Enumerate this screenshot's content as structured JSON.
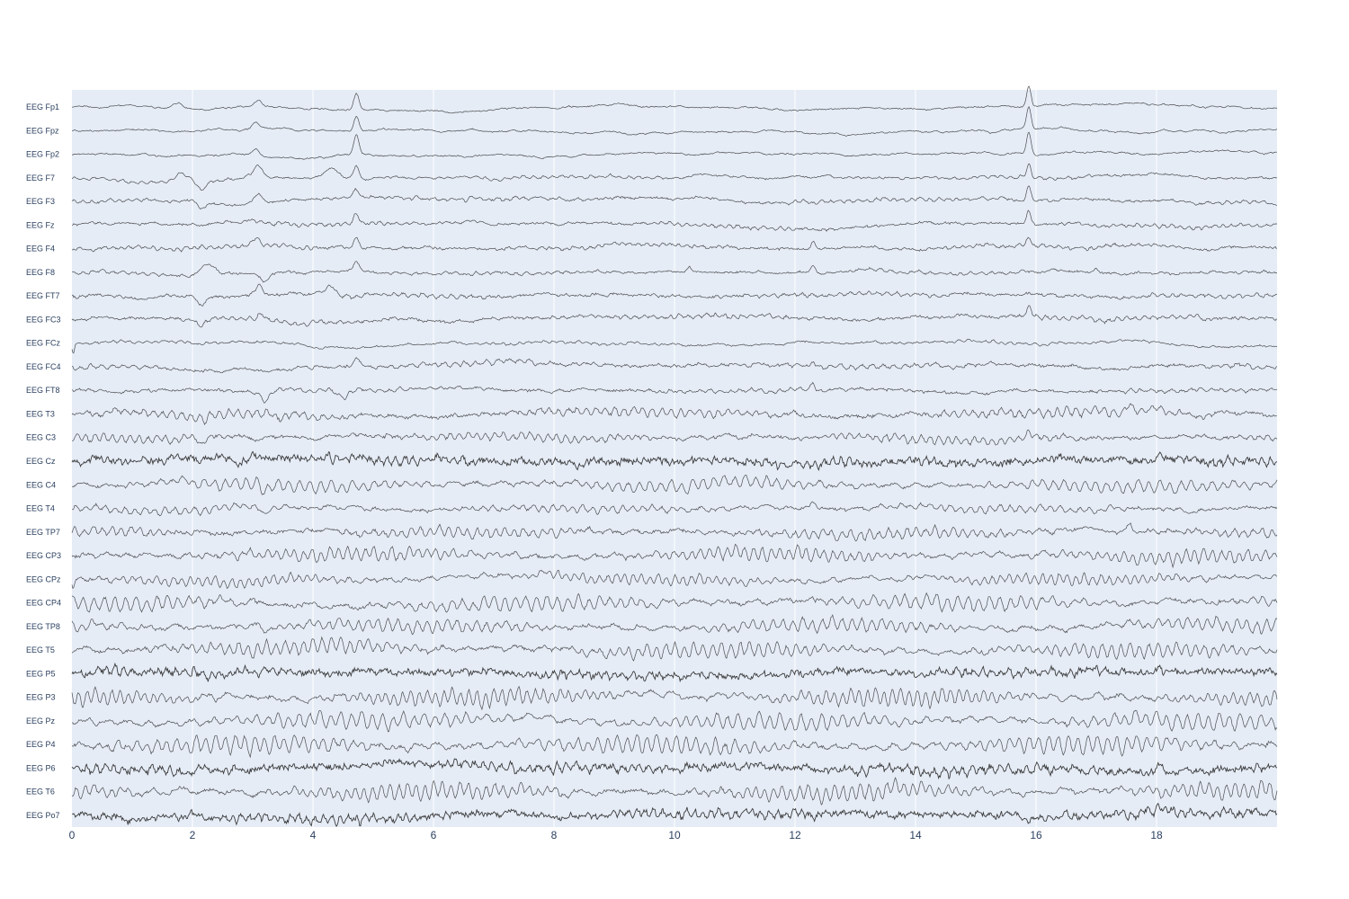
{
  "chart_data": {
    "type": "line",
    "title": "",
    "xlabel": "",
    "ylabel": "",
    "xlim": [
      0,
      20
    ],
    "x_ticks": [
      0,
      2,
      4,
      6,
      8,
      10,
      12,
      14,
      16,
      18
    ],
    "grid": true,
    "legend": "none",
    "colors": {
      "plot_bg": "#e5ecf6",
      "grid": "#ffffff",
      "trace": "#333333",
      "text": "#2a3f5f"
    },
    "series": [
      {
        "name": "EEG Fp1",
        "noise": 0.06,
        "alpha": 0,
        "events": [
          {
            "t": 1.75,
            "a": 0.35,
            "w": 0.12
          },
          {
            "t": 3.1,
            "a": 0.45,
            "w": 0.08
          },
          {
            "t": 4.72,
            "a": 1.0,
            "w": 0.06
          },
          {
            "t": 15.88,
            "a": 1.25,
            "w": 0.05
          }
        ]
      },
      {
        "name": "EEG Fpz",
        "noise": 0.06,
        "alpha": 0,
        "events": [
          {
            "t": 3.05,
            "a": 0.45,
            "w": 0.08
          },
          {
            "t": 4.72,
            "a": 1.0,
            "w": 0.06
          },
          {
            "t": 15.88,
            "a": 1.35,
            "w": 0.05
          }
        ]
      },
      {
        "name": "EEG Fp2",
        "noise": 0.06,
        "alpha": 0,
        "events": [
          {
            "t": 3.05,
            "a": 0.45,
            "w": 0.08
          },
          {
            "t": 4.72,
            "a": 1.2,
            "w": 0.06
          },
          {
            "t": 15.88,
            "a": 1.35,
            "w": 0.05
          }
        ]
      },
      {
        "name": "EEG F7",
        "noise": 0.1,
        "alpha": 0.05,
        "events": [
          {
            "t": 1.8,
            "a": 0.5,
            "w": 0.15
          },
          {
            "t": 2.15,
            "a": -0.55,
            "w": 0.08
          },
          {
            "t": 3.1,
            "a": 0.75,
            "w": 0.1
          },
          {
            "t": 4.3,
            "a": 0.6,
            "w": 0.15
          },
          {
            "t": 4.72,
            "a": 0.8,
            "w": 0.06
          },
          {
            "t": 15.88,
            "a": 0.9,
            "w": 0.05
          }
        ]
      },
      {
        "name": "EEG F3",
        "noise": 0.14,
        "alpha": 0.06,
        "events": [
          {
            "t": 2.15,
            "a": -0.45,
            "w": 0.08
          },
          {
            "t": 3.1,
            "a": 0.55,
            "w": 0.08
          },
          {
            "t": 4.72,
            "a": 0.55,
            "w": 0.06
          },
          {
            "t": 15.88,
            "a": 0.9,
            "w": 0.05
          }
        ]
      },
      {
        "name": "EEG Fz",
        "noise": 0.14,
        "alpha": 0.06,
        "events": [
          {
            "t": 4.72,
            "a": 0.6,
            "w": 0.06
          },
          {
            "t": 15.88,
            "a": 0.8,
            "w": 0.05
          }
        ]
      },
      {
        "name": "EEG F4",
        "noise": 0.16,
        "alpha": 0.06,
        "events": [
          {
            "t": 3.05,
            "a": 0.5,
            "w": 0.08
          },
          {
            "t": 4.72,
            "a": 0.7,
            "w": 0.06
          },
          {
            "t": 12.3,
            "a": 0.4,
            "w": 0.05
          },
          {
            "t": 15.88,
            "a": 0.5,
            "w": 0.05
          }
        ]
      },
      {
        "name": "EEG F8",
        "noise": 0.14,
        "alpha": 0.05,
        "events": [
          {
            "t": 2.25,
            "a": 0.6,
            "w": 0.15
          },
          {
            "t": 3.2,
            "a": -0.5,
            "w": 0.08
          },
          {
            "t": 4.72,
            "a": 0.7,
            "w": 0.08
          },
          {
            "t": 10.25,
            "a": 0.45,
            "w": 0.06
          },
          {
            "t": 12.3,
            "a": 0.45,
            "w": 0.05
          },
          {
            "t": 17.0,
            "a": 0.3,
            "w": 0.06
          }
        ]
      },
      {
        "name": "EEG FT7",
        "noise": 0.18,
        "alpha": 0.07,
        "events": [
          {
            "t": 2.15,
            "a": -0.5,
            "w": 0.1
          },
          {
            "t": 3.1,
            "a": 0.7,
            "w": 0.08
          },
          {
            "t": 4.3,
            "a": 0.6,
            "w": 0.1
          }
        ]
      },
      {
        "name": "EEG FC3",
        "noise": 0.18,
        "alpha": 0.07,
        "events": [
          {
            "t": 2.15,
            "a": -0.5,
            "w": 0.1
          },
          {
            "t": 3.15,
            "a": 0.5,
            "w": 0.08
          },
          {
            "t": 15.88,
            "a": 0.6,
            "w": 0.05
          }
        ]
      },
      {
        "name": "EEG FCz",
        "noise": 0.09,
        "alpha": 0.04,
        "events": [
          {
            "t": 0.02,
            "a": -0.6,
            "w": 0.03
          }
        ]
      },
      {
        "name": "EEG FC4",
        "noise": 0.18,
        "alpha": 0.08,
        "events": [
          {
            "t": 4.72,
            "a": 0.5,
            "w": 0.08
          },
          {
            "t": 12.3,
            "a": 0.4,
            "w": 0.05
          }
        ]
      },
      {
        "name": "EEG FT8",
        "noise": 0.16,
        "alpha": 0.06,
        "events": [
          {
            "t": 3.2,
            "a": -0.6,
            "w": 0.08
          },
          {
            "t": 4.5,
            "a": -0.5,
            "w": 0.1
          },
          {
            "t": 12.3,
            "a": 0.4,
            "w": 0.05
          }
        ]
      },
      {
        "name": "EEG T3",
        "noise": 0.26,
        "alpha": 0.18,
        "events": [
          {
            "t": 2.2,
            "a": -0.4,
            "w": 0.08
          },
          {
            "t": 17.55,
            "a": 0.4,
            "w": 0.05
          }
        ]
      },
      {
        "name": "EEG C3",
        "noise": 0.22,
        "alpha": 0.16,
        "events": [
          {
            "t": 2.15,
            "a": -0.45,
            "w": 0.08
          },
          {
            "t": 15.88,
            "a": 0.4,
            "w": 0.05
          }
        ]
      },
      {
        "name": "EEG Cz",
        "noise": 0.55,
        "alpha": 0.1,
        "events": [
          {
            "t": 18.05,
            "a": 0.4,
            "w": 0.05
          }
        ]
      },
      {
        "name": "EEG C4",
        "noise": 0.22,
        "alpha": 0.25,
        "events": [
          {
            "t": 3.2,
            "a": -0.4,
            "w": 0.08
          }
        ]
      },
      {
        "name": "EEG T4",
        "noise": 0.2,
        "alpha": 0.14,
        "events": [
          {
            "t": 3.2,
            "a": -0.5,
            "w": 0.08
          },
          {
            "t": 12.3,
            "a": 0.4,
            "w": 0.05
          }
        ]
      },
      {
        "name": "EEG TP7",
        "noise": 0.26,
        "alpha": 0.2,
        "events": [
          {
            "t": 17.55,
            "a": 0.4,
            "w": 0.05
          }
        ]
      },
      {
        "name": "EEG CP3",
        "noise": 0.24,
        "alpha": 0.26,
        "events": []
      },
      {
        "name": "EEG CPz",
        "noise": 0.2,
        "alpha": 0.2,
        "events": [
          {
            "t": 0.02,
            "a": -0.6,
            "w": 0.03
          }
        ]
      },
      {
        "name": "EEG CP4",
        "noise": 0.26,
        "alpha": 0.3,
        "events": []
      },
      {
        "name": "EEG TP8",
        "noise": 0.24,
        "alpha": 0.26,
        "events": [
          {
            "t": 3.2,
            "a": -0.5,
            "w": 0.08
          }
        ]
      },
      {
        "name": "EEG T5",
        "noise": 0.26,
        "alpha": 0.3,
        "events": []
      },
      {
        "name": "EEG P5",
        "noise": 0.5,
        "alpha": 0.12,
        "events": [
          {
            "t": 18.05,
            "a": 0.4,
            "w": 0.05
          }
        ]
      },
      {
        "name": "EEG P3",
        "noise": 0.26,
        "alpha": 0.34,
        "events": []
      },
      {
        "name": "EEG Pz",
        "noise": 0.24,
        "alpha": 0.34,
        "events": []
      },
      {
        "name": "EEG P4",
        "noise": 0.26,
        "alpha": 0.36,
        "events": []
      },
      {
        "name": "EEG P6",
        "noise": 0.52,
        "alpha": 0.14,
        "events": [
          {
            "t": 18.05,
            "a": 0.4,
            "w": 0.05
          }
        ]
      },
      {
        "name": "EEG T6",
        "noise": 0.26,
        "alpha": 0.34,
        "events": []
      },
      {
        "name": "EEG Po7",
        "noise": 0.48,
        "alpha": 0.14,
        "events": [
          {
            "t": 18.05,
            "a": 0.4,
            "w": 0.05
          }
        ]
      }
    ]
  }
}
